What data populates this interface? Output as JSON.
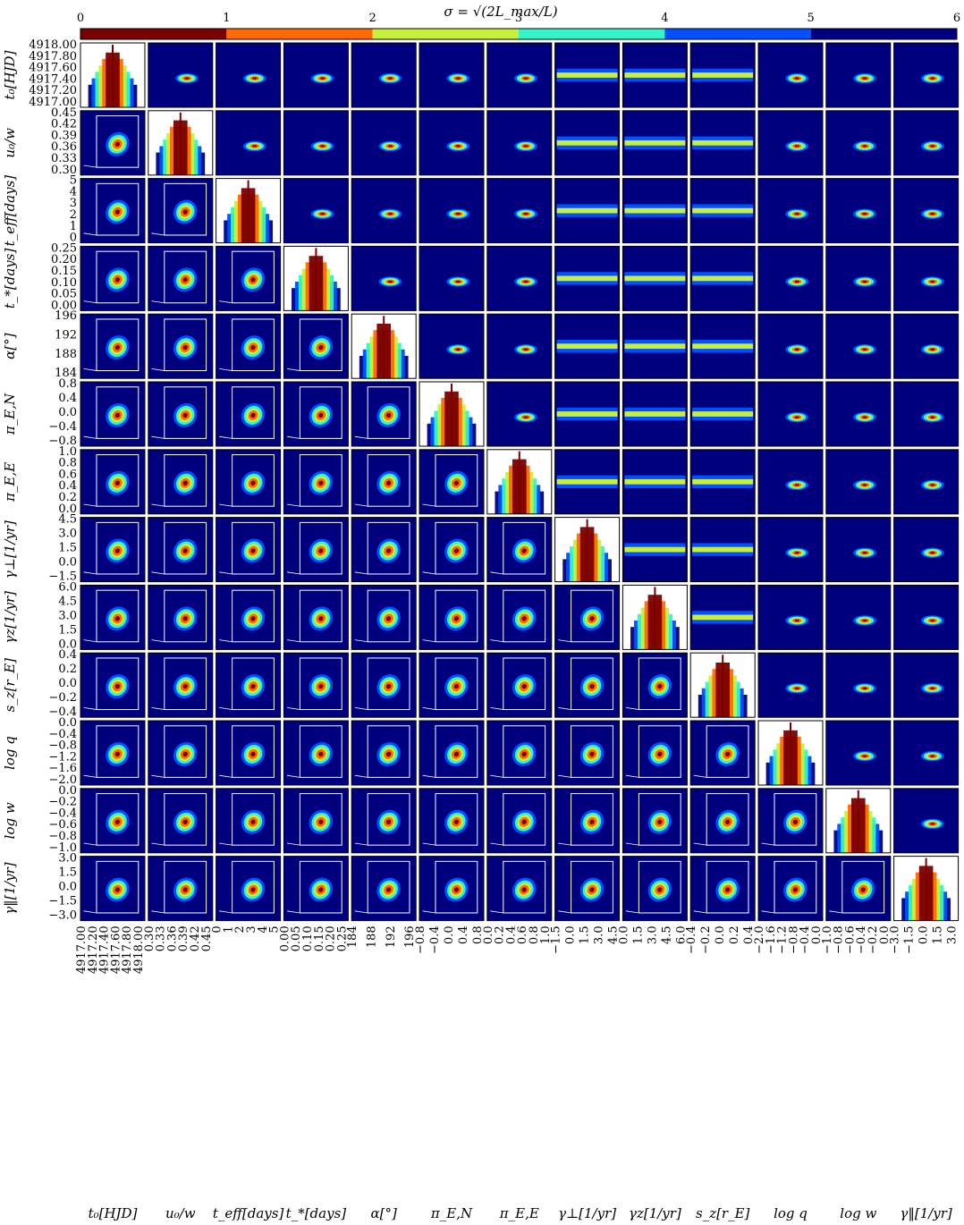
{
  "chart_data": {
    "type": "heatmap",
    "title": "σ = √(2L_max/L)",
    "colorbar": {
      "ticks": [
        "0",
        "1",
        "2",
        "3",
        "4",
        "5",
        "6"
      ],
      "colors": [
        "#7a0000",
        "#ff6a00",
        "#c8f03a",
        "#33f5c8",
        "#0050ff",
        "#000080"
      ]
    },
    "panel_background": "#00007f",
    "params": [
      {
        "label": "t₀[HJD]",
        "yticks": [
          "4918.00",
          "4917.80",
          "4917.60",
          "4917.40",
          "4917.20",
          "4917.00"
        ],
        "xticks": [
          "4917.00",
          "4917.20",
          "4917.40",
          "4917.60",
          "4917.80",
          "4918.00"
        ]
      },
      {
        "label": "u₀/w",
        "yticks": [
          "0.45",
          "0.42",
          "0.39",
          "0.36",
          "0.33",
          "0.30"
        ],
        "xticks": [
          "0.30",
          "0.33",
          "0.36",
          "0.39",
          "0.42",
          "0.45"
        ]
      },
      {
        "label": "t_eff[days]",
        "yticks": [
          "5",
          "4",
          "3",
          "2",
          "1",
          "0"
        ],
        "xticks": [
          "0",
          "1",
          "2",
          "3",
          "4",
          "5"
        ]
      },
      {
        "label": "t_*[days]",
        "yticks": [
          "0.25",
          "0.20",
          "0.15",
          "0.10",
          "0.05",
          "0.00"
        ],
        "xticks": [
          "0.00",
          "0.05",
          "0.10",
          "0.15",
          "0.20",
          "0.25"
        ]
      },
      {
        "label": "α[°]",
        "yticks": [
          "196",
          "192",
          "188",
          "184"
        ],
        "xticks": [
          "184",
          "188",
          "192",
          "196"
        ]
      },
      {
        "label": "π_E,N",
        "yticks": [
          "0.8",
          "0.4",
          "0.0",
          "−0.4",
          "−0.8"
        ],
        "xticks": [
          "−0.8",
          "−0.4",
          "0.0",
          "0.4",
          "0.8"
        ]
      },
      {
        "label": "π_E,E",
        "yticks": [
          "1.0",
          "0.8",
          "0.6",
          "0.4",
          "0.2",
          "0.0"
        ],
        "xticks": [
          "0.0",
          "0.2",
          "0.4",
          "0.6",
          "0.8",
          "1.0"
        ]
      },
      {
        "label": "γ⊥[1/yr]",
        "yticks": [
          "4.5",
          "3.0",
          "1.5",
          "0.0",
          "−1.5"
        ],
        "xticks": [
          "−1.5",
          "0.0",
          "1.5",
          "3.0",
          "4.5"
        ]
      },
      {
        "label": "γz[1/yr]",
        "yticks": [
          "6.0",
          "4.5",
          "3.0",
          "1.5",
          "0.0"
        ],
        "xticks": [
          "0.0",
          "1.5",
          "3.0",
          "4.5",
          "6.0"
        ]
      },
      {
        "label": "s_z[r_E]",
        "yticks": [
          "0.4",
          "0.2",
          "0.0",
          "−0.2",
          "−0.4"
        ],
        "xticks": [
          "−0.4",
          "−0.2",
          "0.0",
          "0.2",
          "0.4"
        ]
      },
      {
        "label": "log q",
        "yticks": [
          "0.0",
          "−0.4",
          "−0.8",
          "−1.2",
          "−1.6",
          "−2.0"
        ],
        "xticks": [
          "−2.0",
          "−1.6",
          "−1.2",
          "−0.8",
          "−0.4",
          "0.0"
        ]
      },
      {
        "label": "log w",
        "yticks": [
          "0.0",
          "−0.2",
          "−0.4",
          "−0.6",
          "−0.8",
          "−1.0"
        ],
        "xticks": [
          "−1.0",
          "−0.8",
          "−0.6",
          "−0.4",
          "−0.2",
          "0.0"
        ]
      },
      {
        "label": "γ‖[1/yr]",
        "yticks": [
          "3.0",
          "1.5",
          "0.0",
          "−1.5",
          "−3.0"
        ],
        "xticks": [
          "−3.0",
          "−1.5",
          "0.0",
          "1.5",
          "3.0"
        ]
      }
    ],
    "grid": false
  }
}
